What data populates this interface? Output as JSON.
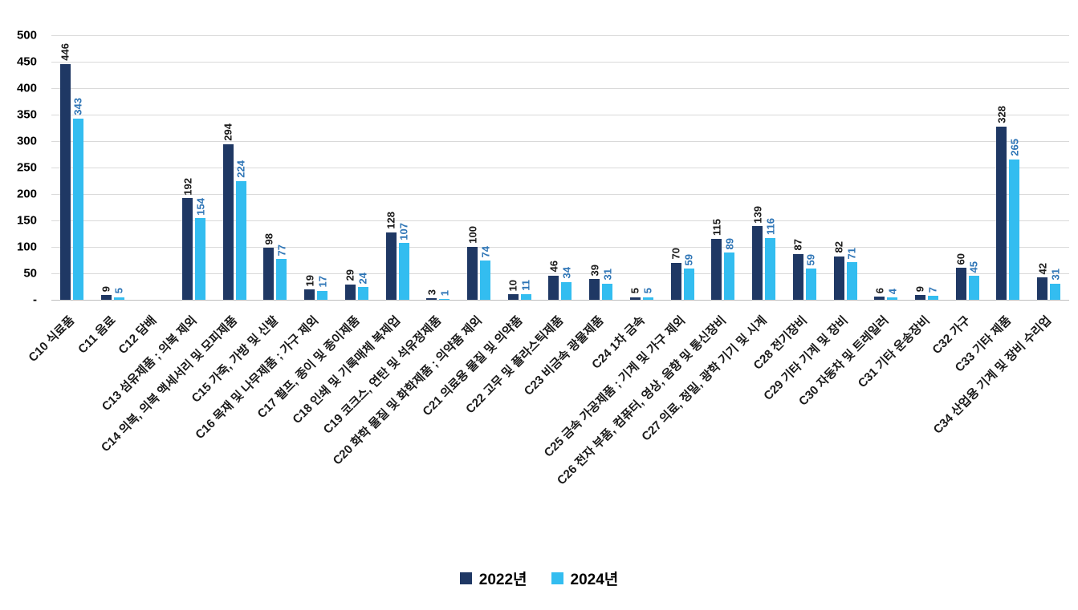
{
  "chart_data": {
    "type": "bar",
    "title": "",
    "xlabel": "",
    "ylabel": "",
    "ylim": [
      0,
      500
    ],
    "ytick_step": 50,
    "ytick_labels": [
      "-",
      "50",
      "100",
      "150",
      "200",
      "250",
      "300",
      "350",
      "400",
      "450",
      "500"
    ],
    "grid": true,
    "legend_position": "bottom",
    "value_labels_rotated": true,
    "categories": [
      "C10 식료품",
      "C11 음료",
      "C12 담배",
      "C13 섬유제품 ; 의복 제외",
      "C14 의복, 의복 액세서리 및 모피제품",
      "C15 가죽, 가방 및 신발",
      "C16 목재 및 나무제품 ; 가구 제외",
      "C17 펄프, 종이 및 종이제품",
      "C18 인쇄 및 기록매체 복제업",
      "C19 코크스, 연탄 및 석유정제품",
      "C20 화학 물질 및 화학제품 ; 의약품 제외",
      "C21 의료용 물질 및 의약품",
      "C22 고무 및 플라스틱제품",
      "C23 비금속 광물제품",
      "C24 1차 금속",
      "C25 금속 가공제품 ; 기계 및 가구 제외",
      "C26 전자 부품, 컴퓨터, 영상, 음향 및 통신장비",
      "C27 의료, 정밀, 광학 기기 및 시계",
      "C28 전기장비",
      "C29 기타 기계 및 장비",
      "C30 자동차 및 트레일러",
      "C31 기타 운송장비",
      "C32 가구",
      "C33 기타 제품",
      "C34 산업용 기계 및 장비 수리업"
    ],
    "series": [
      {
        "name": "2022년",
        "color": "#1f3864",
        "label_color": "#1a1a1a",
        "values": [
          446,
          9,
          0,
          192,
          294,
          98,
          19,
          29,
          128,
          3,
          100,
          10,
          46,
          39,
          5,
          70,
          115,
          139,
          87,
          82,
          6,
          9,
          60,
          328,
          42
        ]
      },
      {
        "name": "2024년",
        "color": "#33bdf0",
        "label_color": "#2e75b6",
        "values": [
          343,
          5,
          0,
          154,
          224,
          77,
          17,
          24,
          107,
          1,
          74,
          11,
          34,
          31,
          5,
          59,
          89,
          116,
          59,
          71,
          4,
          7,
          45,
          265,
          31
        ]
      }
    ],
    "colors": {
      "gridline": "#d9d9d9",
      "axis_line": "#bfbfbf",
      "tick_text": "#000000",
      "category_text": "#1a1a1a"
    }
  }
}
